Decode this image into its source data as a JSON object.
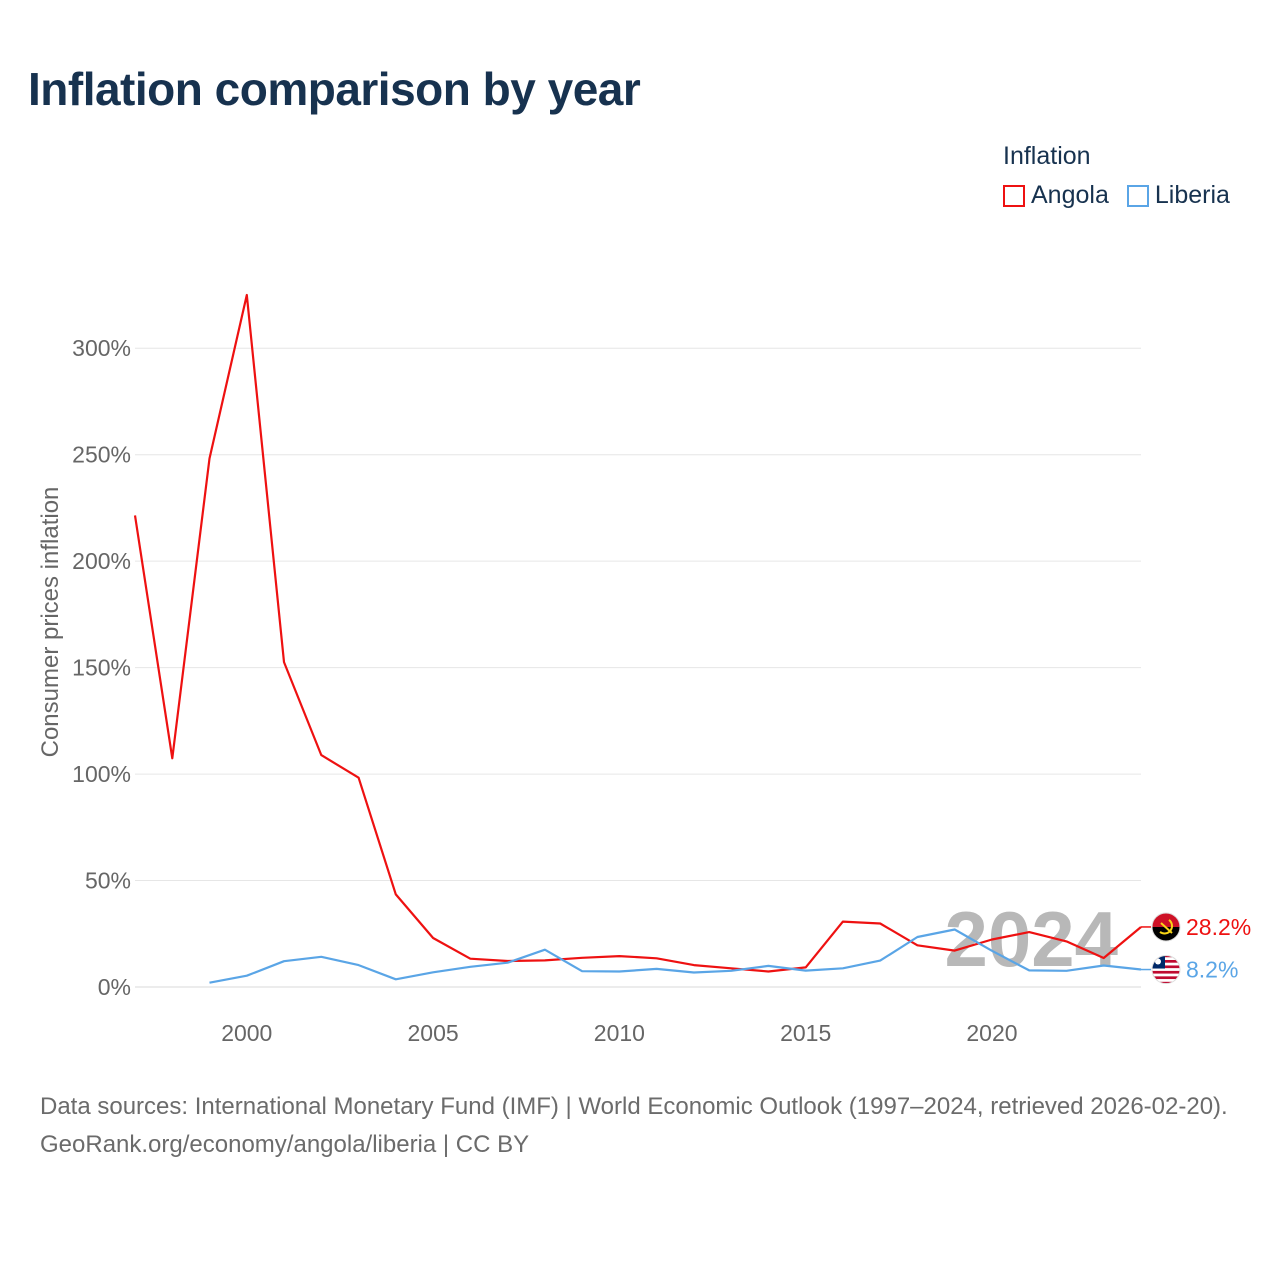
{
  "title": "Inflation comparison by year",
  "legend": {
    "title": "Inflation",
    "items": [
      {
        "label": "Angola",
        "color": "#ee1111"
      },
      {
        "label": "Liberia",
        "color": "#5aa5e6"
      }
    ]
  },
  "footer": {
    "sources": "Data sources: International Monetary Fund (IMF) | World Economic Outlook (1997–2024, retrieved 2026-02-20).",
    "credit": "GeoRank.org/economy/angola/liberia | CC BY"
  },
  "chart_data": {
    "type": "line",
    "title": "Inflation comparison by year",
    "xlabel": "",
    "ylabel": "Consumer prices inflation",
    "xlim": [
      1997,
      2024
    ],
    "ylim": [
      0,
      325
    ],
    "x_ticks": [
      2000,
      2005,
      2010,
      2015,
      2020
    ],
    "y_ticks": [
      0,
      50,
      100,
      150,
      200,
      250,
      300
    ],
    "y_tick_labels": [
      "0%",
      "50%",
      "100%",
      "150%",
      "200%",
      "250%",
      "300%"
    ],
    "grid": true,
    "watermark_year": "2024",
    "series": [
      {
        "name": "Angola",
        "color": "#ee1111",
        "end_label": "28.2%",
        "x": [
          1997,
          1998,
          1999,
          2000,
          2001,
          2002,
          2003,
          2004,
          2005,
          2006,
          2007,
          2008,
          2009,
          2010,
          2011,
          2012,
          2013,
          2014,
          2015,
          2016,
          2017,
          2018,
          2019,
          2020,
          2021,
          2022,
          2023,
          2024
        ],
        "values": [
          221.5,
          107.4,
          248.2,
          325.0,
          152.6,
          108.9,
          98.3,
          43.5,
          23.0,
          13.3,
          12.2,
          12.5,
          13.7,
          14.5,
          13.5,
          10.3,
          8.8,
          7.3,
          9.2,
          30.7,
          29.8,
          19.6,
          17.1,
          22.3,
          25.8,
          21.4,
          13.6,
          28.2
        ]
      },
      {
        "name": "Liberia",
        "color": "#5aa5e6",
        "end_label": "8.2%",
        "x": [
          1999,
          2000,
          2001,
          2002,
          2003,
          2004,
          2005,
          2006,
          2007,
          2008,
          2009,
          2010,
          2011,
          2012,
          2013,
          2014,
          2015,
          2016,
          2017,
          2018,
          2019,
          2020,
          2021,
          2022,
          2023,
          2024
        ],
        "values": [
          2.0,
          5.3,
          12.1,
          14.2,
          10.3,
          3.6,
          6.9,
          9.5,
          11.4,
          17.5,
          7.4,
          7.3,
          8.5,
          6.8,
          7.6,
          9.9,
          7.7,
          8.8,
          12.4,
          23.5,
          27.0,
          17.0,
          7.8,
          7.6,
          10.1,
          8.2
        ]
      }
    ]
  }
}
